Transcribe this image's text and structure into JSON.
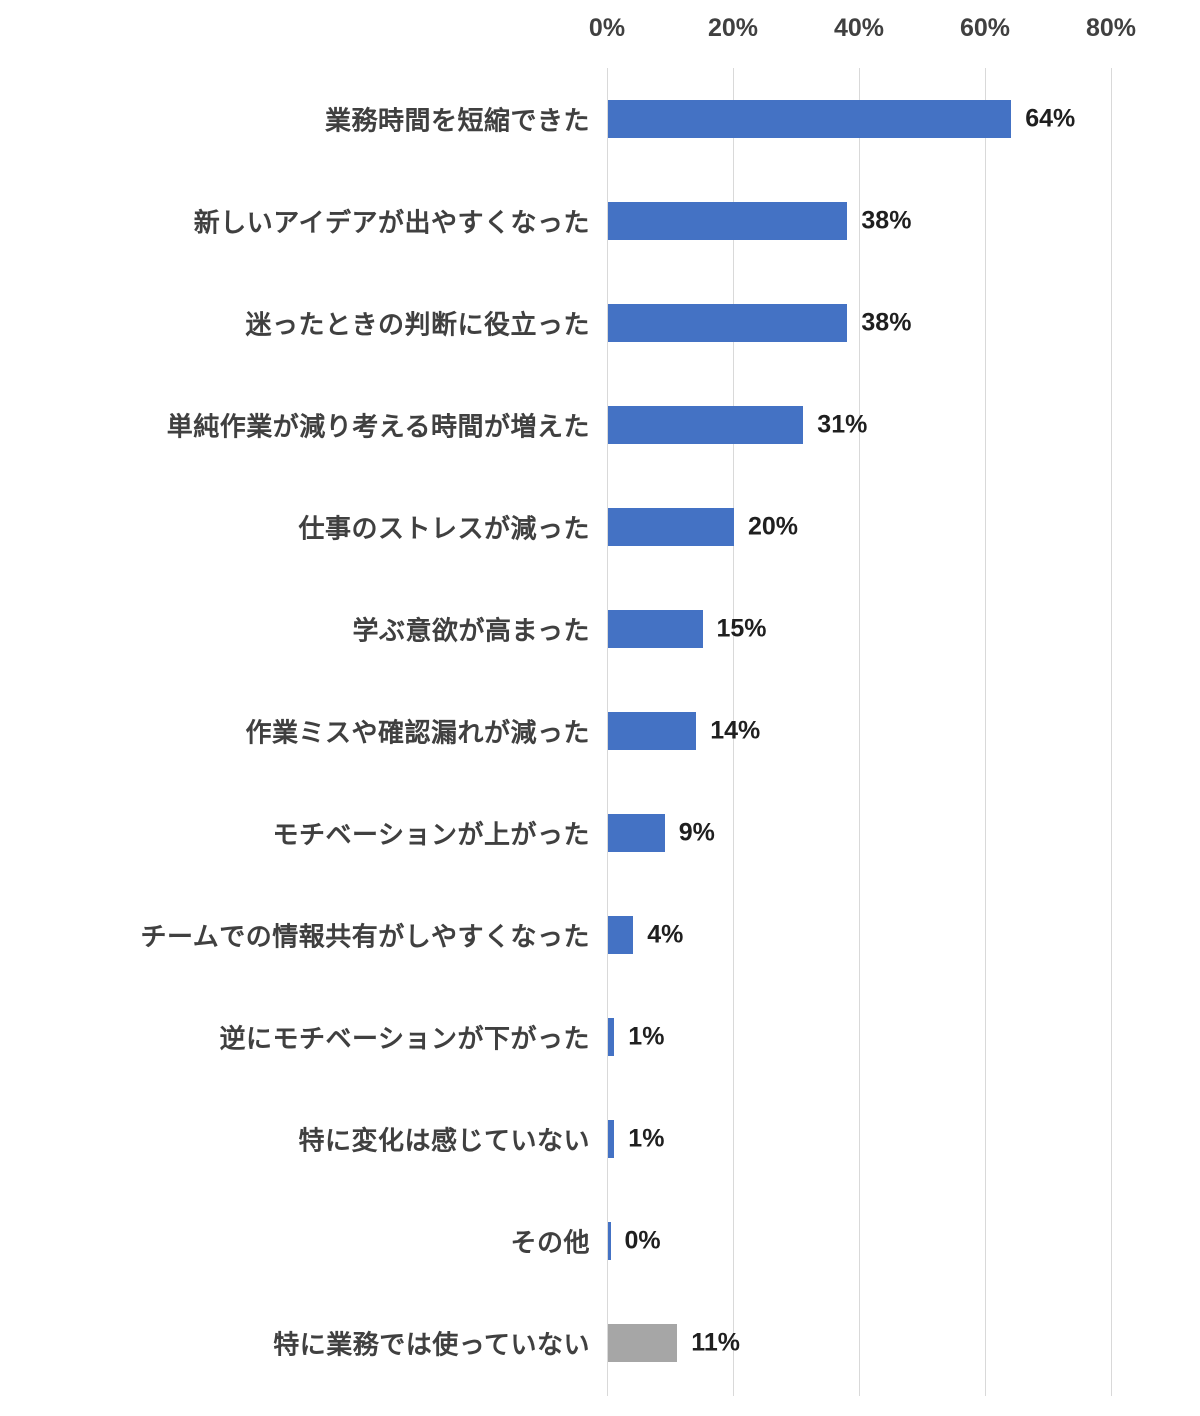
{
  "chart_data": {
    "type": "bar",
    "orientation": "horizontal",
    "title": "",
    "xlabel": "",
    "ylabel": "",
    "xlim": [
      0,
      80
    ],
    "grid": "vertical",
    "legend": "none",
    "x_ticks": [
      {
        "value": 0,
        "label": "0%"
      },
      {
        "value": 20,
        "label": "20%"
      },
      {
        "value": 40,
        "label": "40%"
      },
      {
        "value": 60,
        "label": "60%"
      },
      {
        "value": 80,
        "label": "80%"
      }
    ],
    "bars": [
      {
        "category": "業務時間を短縮できた",
        "value": 64,
        "label": "64%",
        "color": "#4472C4"
      },
      {
        "category": "新しいアイデアが出やすくなった",
        "value": 38,
        "label": "38%",
        "color": "#4472C4"
      },
      {
        "category": "迷ったときの判断に役立った",
        "value": 38,
        "label": "38%",
        "color": "#4472C4"
      },
      {
        "category": "単純作業が減り考える時間が増えた",
        "value": 31,
        "label": "31%",
        "color": "#4472C4"
      },
      {
        "category": "仕事のストレスが減った",
        "value": 20,
        "label": "20%",
        "color": "#4472C4"
      },
      {
        "category": "学ぶ意欲が高まった",
        "value": 15,
        "label": "15%",
        "color": "#4472C4"
      },
      {
        "category": "作業ミスや確認漏れが減った",
        "value": 14,
        "label": "14%",
        "color": "#4472C4"
      },
      {
        "category": "モチベーションが上がった",
        "value": 9,
        "label": "9%",
        "color": "#4472C4"
      },
      {
        "category": "チームでの情報共有がしやすくなった",
        "value": 4,
        "label": "4%",
        "color": "#4472C4"
      },
      {
        "category": "逆にモチベーションが下がった",
        "value": 1,
        "label": "1%",
        "color": "#4472C4"
      },
      {
        "category": "特に変化は感じていない",
        "value": 1,
        "label": "1%",
        "color": "#4472C4"
      },
      {
        "category": "その他",
        "value": 0,
        "label": "0%",
        "color": "#4472C4"
      },
      {
        "category": "特に業務では使っていない",
        "value": 11,
        "label": "11%",
        "color": "#A6A6A6"
      }
    ],
    "colors": {
      "bar_primary": "#4472C4",
      "bar_neutral": "#A6A6A6",
      "gridline": "#D9D9D9",
      "category_text": "#404040",
      "tick_text": "#404040",
      "value_text": "#1F1F1F",
      "background": "#FFFFFF"
    }
  }
}
